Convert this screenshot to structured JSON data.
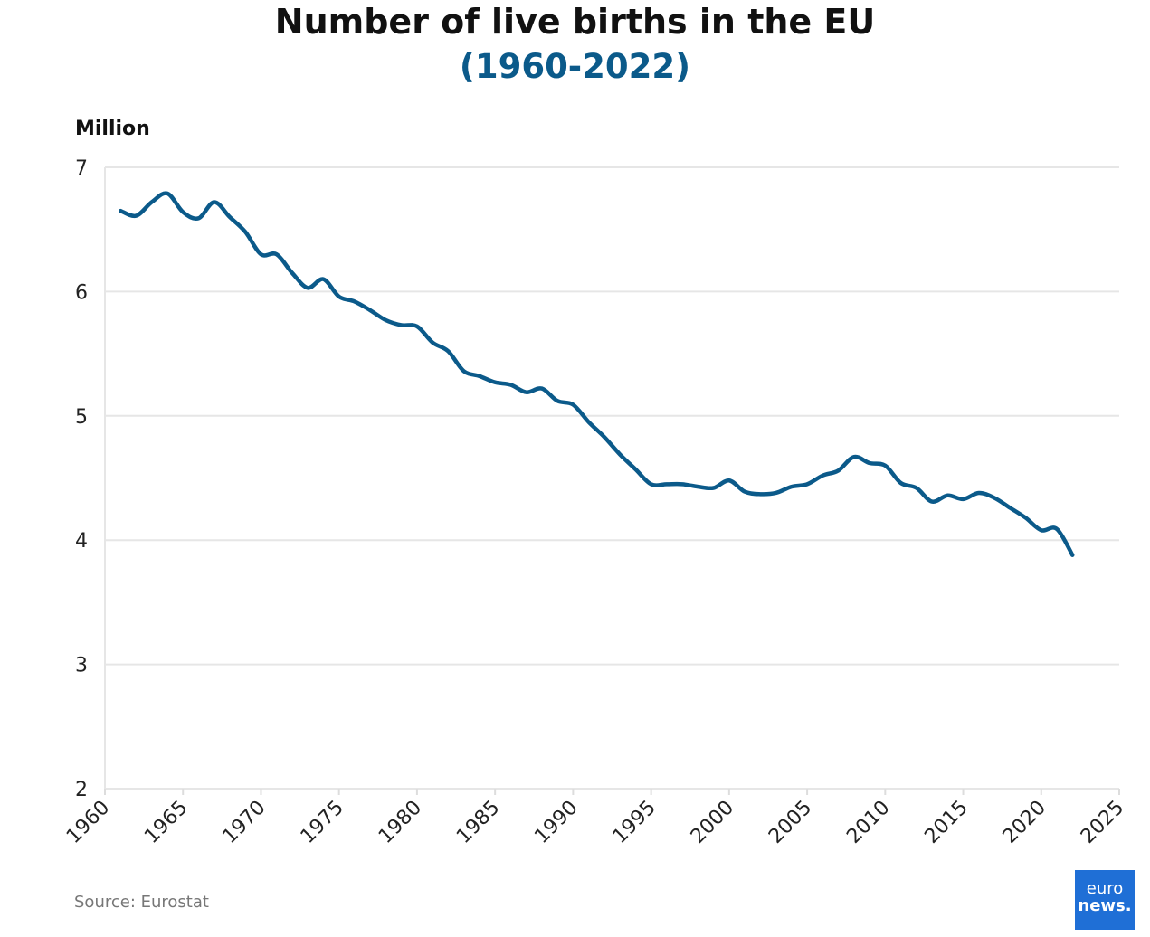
{
  "header": {
    "title": "Number of live births in the EU",
    "subtitle": "(1960-2022)",
    "unit_label": "Million"
  },
  "footer": {
    "source": "Source: Eurostat",
    "logo_line1": "euro",
    "logo_line2": "news."
  },
  "colors": {
    "line": "#0b5a8a",
    "subtitle": "#0b5a8a",
    "grid": "#e6e6e6",
    "logo_bg": "#1f6fd6"
  },
  "chart_data": {
    "type": "line",
    "title": "Number of live births in the EU (1960-2022)",
    "xlabel": "",
    "ylabel": "Million",
    "xlim": [
      1960,
      2025
    ],
    "ylim": [
      2,
      7
    ],
    "x_ticks": [
      1960,
      1965,
      1970,
      1975,
      1980,
      1985,
      1990,
      1995,
      2000,
      2005,
      2010,
      2015,
      2020,
      2025
    ],
    "y_ticks": [
      2,
      3,
      4,
      5,
      6,
      7
    ],
    "grid": true,
    "series": [
      {
        "name": "Live births",
        "x": [
          1961,
          1962,
          1963,
          1964,
          1965,
          1966,
          1967,
          1968,
          1969,
          1970,
          1971,
          1972,
          1973,
          1974,
          1975,
          1976,
          1977,
          1978,
          1979,
          1980,
          1981,
          1982,
          1983,
          1984,
          1985,
          1986,
          1987,
          1988,
          1989,
          1990,
          1991,
          1992,
          1993,
          1994,
          1995,
          1996,
          1997,
          1998,
          1999,
          2000,
          2001,
          2002,
          2003,
          2004,
          2005,
          2006,
          2007,
          2008,
          2009,
          2010,
          2011,
          2012,
          2013,
          2014,
          2015,
          2016,
          2017,
          2018,
          2019,
          2020,
          2021,
          2022
        ],
        "values": [
          6.65,
          6.61,
          6.72,
          6.79,
          6.64,
          6.59,
          6.72,
          6.6,
          6.48,
          6.3,
          6.3,
          6.15,
          6.03,
          6.1,
          5.96,
          5.92,
          5.85,
          5.77,
          5.73,
          5.72,
          5.59,
          5.52,
          5.36,
          5.32,
          5.27,
          5.25,
          5.19,
          5.22,
          5.12,
          5.09,
          4.95,
          4.83,
          4.69,
          4.57,
          4.45,
          4.45,
          4.45,
          4.43,
          4.42,
          4.48,
          4.39,
          4.37,
          4.38,
          4.43,
          4.45,
          4.52,
          4.56,
          4.67,
          4.62,
          4.6,
          4.46,
          4.42,
          4.31,
          4.36,
          4.33,
          4.38,
          4.34,
          4.26,
          4.18,
          4.08,
          4.09,
          3.88
        ]
      }
    ]
  }
}
